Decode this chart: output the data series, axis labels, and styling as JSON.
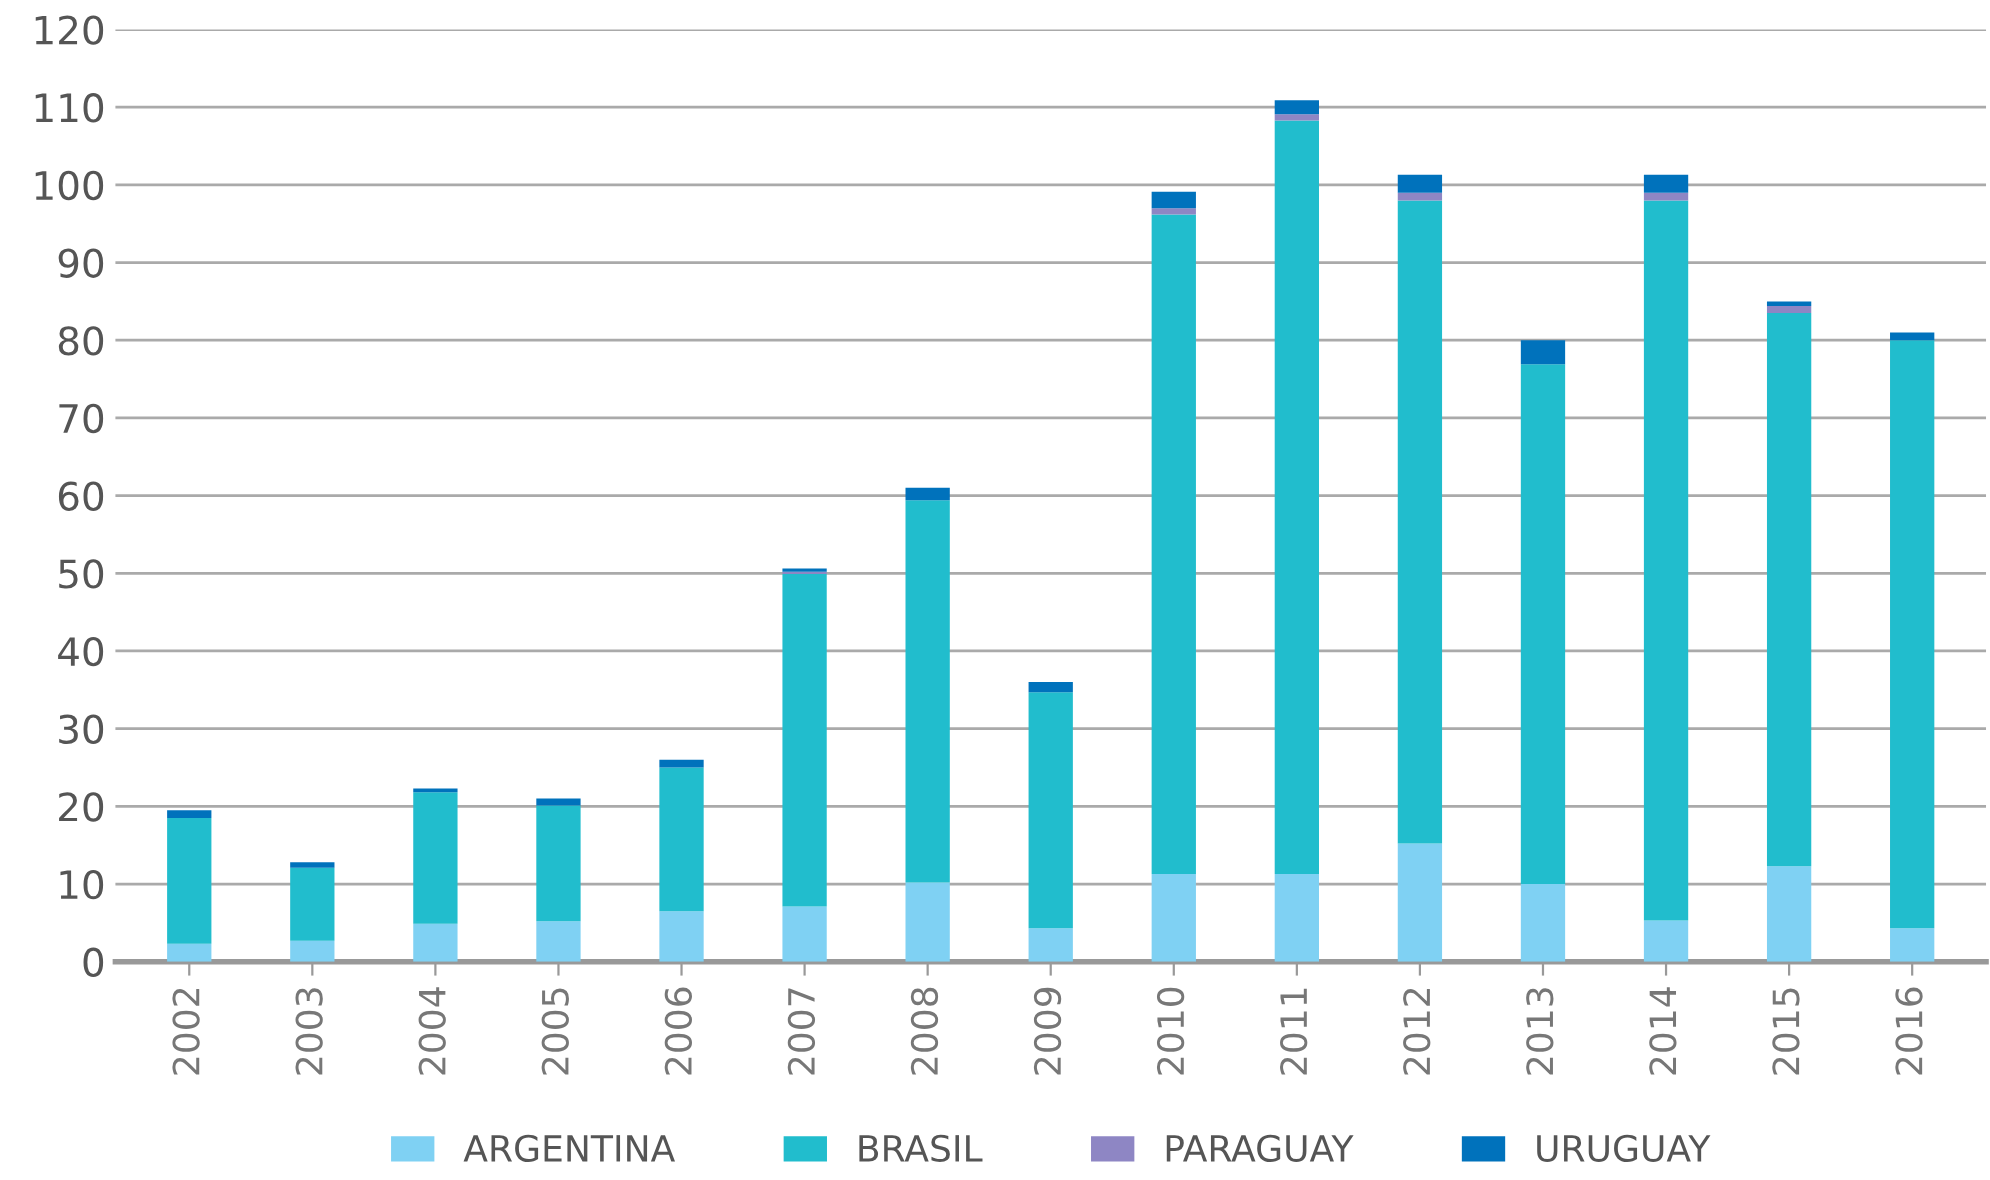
{
  "chart_data": {
    "type": "bar",
    "stacked": true,
    "categories": [
      "2002",
      "2003",
      "2004",
      "2005",
      "2006",
      "2007",
      "2008",
      "2009",
      "2010",
      "2011",
      "2012",
      "2013",
      "2014",
      "2015",
      "2016"
    ],
    "series": [
      {
        "name": "ARGENTINA",
        "color": "#7fd1f3",
        "values": [
          2.3,
          2.7,
          4.9,
          5.2,
          6.5,
          7.1,
          10.2,
          4.3,
          11.3,
          11.3,
          15.2,
          10.0,
          5.3,
          12.3,
          4.3
        ]
      },
      {
        "name": "BRASIL",
        "color": "#21bdcd",
        "values": [
          16.2,
          9.4,
          16.9,
          14.9,
          18.5,
          42.8,
          49.2,
          30.4,
          84.9,
          97.0,
          82.8,
          66.9,
          92.7,
          71.2,
          75.7
        ]
      },
      {
        "name": "PARAGUAY",
        "color": "#8e86c4",
        "values": [
          0,
          0,
          0,
          0,
          0,
          0.3,
          0,
          0,
          0.8,
          0.8,
          1.0,
          0,
          1.0,
          0.9,
          0
        ]
      },
      {
        "name": "URUGUAY",
        "color": "#0072bc",
        "values": [
          1.0,
          0.7,
          0.5,
          0.9,
          1.0,
          0.4,
          1.6,
          1.3,
          2.1,
          1.8,
          2.3,
          3.1,
          2.3,
          0.6,
          1.0
        ]
      }
    ],
    "ylim": [
      0,
      120
    ],
    "yticks": [
      0,
      10,
      20,
      30,
      40,
      50,
      60,
      70,
      80,
      90,
      100,
      110,
      120
    ],
    "grid": "y",
    "legend": "bottom"
  }
}
